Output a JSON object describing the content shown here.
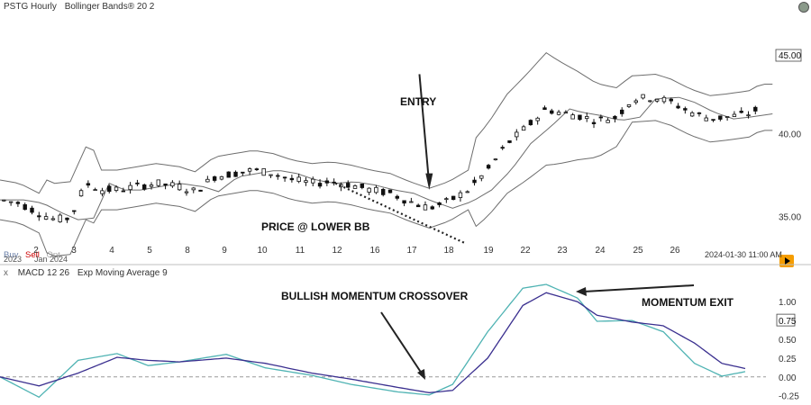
{
  "header": {
    "symbol": "PSTG Hourly",
    "indicator": "Bollinger Bands® 20 2"
  },
  "lower_header": {
    "close_mark": "x",
    "indicator": "MACD 12 26",
    "signal": "Exp Moving Average 9"
  },
  "trade_buttons": {
    "buy": "Buy",
    "sell": "Sell",
    "opt": "Opt"
  },
  "timestamp": "2024-01-30 11:00 AM",
  "colors": {
    "candle": "#111111",
    "band": "#6e6e6e",
    "macd": "#4fb3b3",
    "signal": "#3a2f8f",
    "sell": "#cc0000",
    "buy": "#6a7fa8",
    "opt": "#aaaaaa",
    "accent": "#f59d00"
  },
  "chart_data": [
    {
      "type": "candlestick",
      "title": "PSTG Hourly",
      "indicator": "Bollinger Bands 20 2",
      "x_ticks": [
        "3",
        "4",
        "5",
        "8",
        "9",
        "10",
        "11",
        "12",
        "16",
        "17",
        "18",
        "19",
        "22",
        "23",
        "24",
        "25",
        "26"
      ],
      "x_tick_partial": [
        "2",
        "Jan 2024",
        "2023"
      ],
      "y_ticks": [
        35.0,
        40.0
      ],
      "y_tick_labels": [
        "35.00",
        "40.00"
      ],
      "price_marker": "45.00",
      "ylim": [
        33.5,
        47.0
      ],
      "price_path": [
        [
          0,
          36.0
        ],
        [
          0.5,
          35.8
        ],
        [
          1.0,
          35.2
        ],
        [
          1.4,
          34.8
        ],
        [
          1.8,
          34.9
        ],
        [
          2.2,
          37.0
        ],
        [
          2.6,
          36.6
        ],
        [
          3.0,
          36.6
        ],
        [
          3.5,
          36.8
        ],
        [
          4.0,
          37.0
        ],
        [
          4.6,
          36.8
        ],
        [
          5.0,
          36.5
        ],
        [
          5.5,
          37.4
        ],
        [
          6.0,
          37.6
        ],
        [
          6.5,
          37.8
        ],
        [
          7.0,
          37.6
        ],
        [
          7.5,
          37.2
        ],
        [
          8.0,
          37.0
        ],
        [
          8.5,
          37.1
        ],
        [
          9.0,
          36.9
        ],
        [
          9.5,
          36.6
        ],
        [
          10.0,
          36.4
        ],
        [
          10.5,
          35.9
        ],
        [
          11.0,
          35.5
        ],
        [
          11.5,
          35.9
        ],
        [
          12.0,
          36.6
        ],
        [
          12.5,
          37.8
        ],
        [
          13.0,
          39.4
        ],
        [
          13.5,
          40.4
        ],
        [
          14.0,
          41.5
        ],
        [
          14.3,
          41.3
        ],
        [
          14.8,
          41.1
        ],
        [
          15.3,
          40.8
        ],
        [
          15.8,
          41.0
        ],
        [
          16.2,
          42.1
        ],
        [
          16.8,
          42.2
        ],
        [
          17.2,
          41.9
        ],
        [
          17.7,
          41.3
        ],
        [
          18.2,
          40.9
        ],
        [
          18.6,
          41.0
        ],
        [
          19.2,
          41.2
        ],
        [
          19.5,
          41.6
        ]
      ],
      "annotations": [
        "ENTRY",
        "PRICE @ LOWER BB"
      ]
    },
    {
      "type": "line",
      "title": "MACD 12 26",
      "series": [
        {
          "name": "MACD 12 26",
          "values": [
            [
              0,
              0.0
            ],
            [
              1.0,
              -0.27
            ],
            [
              2.0,
              0.22
            ],
            [
              3.0,
              0.31
            ],
            [
              3.8,
              0.15
            ],
            [
              4.6,
              0.2
            ],
            [
              5.8,
              0.3
            ],
            [
              6.8,
              0.12
            ],
            [
              8.0,
              0.02
            ],
            [
              9.0,
              -0.1
            ],
            [
              10.2,
              -0.2
            ],
            [
              11.0,
              -0.24
            ],
            [
              11.6,
              -0.1
            ],
            [
              12.5,
              0.6
            ],
            [
              13.4,
              1.18
            ],
            [
              14.0,
              1.23
            ],
            [
              14.8,
              1.05
            ],
            [
              15.3,
              0.74
            ],
            [
              16.2,
              0.75
            ],
            [
              17.0,
              0.6
            ],
            [
              17.8,
              0.18
            ],
            [
              18.5,
              0.01
            ],
            [
              19.2,
              0.08
            ]
          ]
        },
        {
          "name": "Exp Moving Average 9",
          "values": [
            [
              0,
              0.0
            ],
            [
              1.0,
              -0.12
            ],
            [
              2.0,
              0.05
            ],
            [
              3.0,
              0.26
            ],
            [
              3.8,
              0.22
            ],
            [
              4.6,
              0.2
            ],
            [
              5.8,
              0.25
            ],
            [
              6.8,
              0.18
            ],
            [
              8.0,
              0.05
            ],
            [
              9.0,
              -0.03
            ],
            [
              10.2,
              -0.14
            ],
            [
              11.0,
              -0.21
            ],
            [
              11.6,
              -0.18
            ],
            [
              12.5,
              0.25
            ],
            [
              13.4,
              0.95
            ],
            [
              14.0,
              1.12
            ],
            [
              14.8,
              1.0
            ],
            [
              15.3,
              0.82
            ],
            [
              16.2,
              0.73
            ],
            [
              17.0,
              0.68
            ],
            [
              17.8,
              0.45
            ],
            [
              18.5,
              0.18
            ],
            [
              19.2,
              0.1
            ]
          ]
        }
      ],
      "y_ticks": [
        -0.25,
        0.0,
        0.25,
        0.5,
        1.0
      ],
      "y_tick_labels": [
        "-0.25",
        "0.00",
        "0.25",
        "0.50",
        "1.00"
      ],
      "value_marker": "0.75",
      "ylim": [
        -0.35,
        1.35
      ],
      "annotations": [
        "BULLISH MOMENTUM CROSSOVER",
        "MOMENTUM EXIT"
      ]
    }
  ]
}
